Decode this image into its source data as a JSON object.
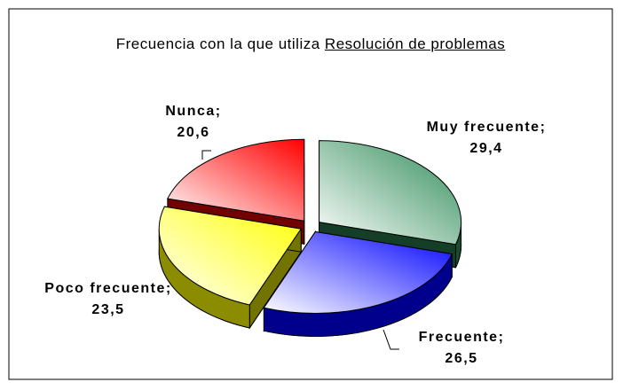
{
  "chart_data": {
    "type": "pie",
    "title": "Frecuencia con la que utiliza",
    "title_underlined": "Resolución de problemas",
    "categories": [
      "Muy frecuente",
      "Frecuente",
      "Poco frecuente",
      "Nunca"
    ],
    "values": [
      29.4,
      26.5,
      23.5,
      20.6
    ],
    "value_labels": [
      "29,4",
      "26,5",
      "23,5",
      "20,6"
    ],
    "label_separator": ";",
    "colors": [
      "#2e8b57",
      "#0000ff",
      "#ffff00",
      "#ff0000"
    ]
  }
}
